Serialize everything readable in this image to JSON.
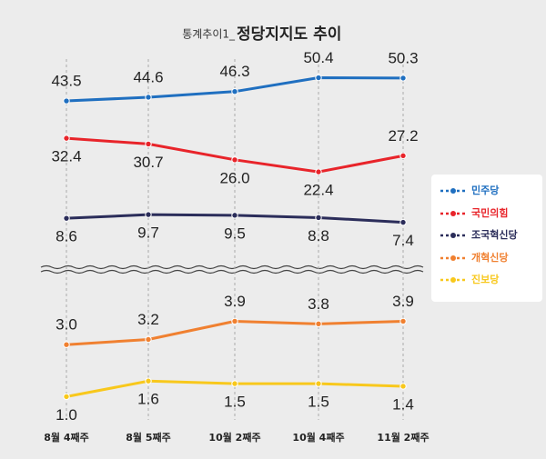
{
  "chart_data": {
    "type": "line",
    "kicker": "통계추이1_",
    "title": "정당지지도 추이",
    "categories": [
      "8월 4째주",
      "8월 5째주",
      "10월 2째주",
      "10월 4째주",
      "11월 2째주"
    ],
    "ylim": [
      0,
      60
    ],
    "y2lim": [
      0,
      5
    ],
    "series": [
      {
        "name": "민주당",
        "color": "#1f6fc0",
        "values": [
          43.5,
          44.6,
          46.3,
          50.4,
          50.3
        ],
        "value_labels": [
          "43.5",
          "44.6",
          "46.3",
          "50.4",
          "50.3"
        ]
      },
      {
        "name": "국민의힘",
        "color": "#e8242a",
        "values": [
          32.4,
          30.7,
          26.0,
          22.4,
          27.2
        ],
        "value_labels": [
          "32.4",
          "30.7",
          "26.0",
          "22.4",
          "27.2"
        ]
      },
      {
        "name": "조국혁신당",
        "color": "#2b2d5a",
        "values": [
          8.6,
          9.7,
          9.5,
          8.8,
          7.4
        ],
        "value_labels": [
          "8.6",
          "9.7",
          "9.5",
          "8.8",
          "7.4"
        ]
      },
      {
        "name": "개혁신당",
        "color": "#f08030",
        "axis": "y2",
        "values": [
          3.0,
          3.2,
          3.9,
          3.8,
          3.9
        ],
        "value_labels": [
          "3.0",
          "3.2",
          "3.9",
          "3.8",
          "3.9"
        ]
      },
      {
        "name": "진보당",
        "color": "#f8c81c",
        "axis": "y2",
        "values": [
          1.0,
          1.6,
          1.5,
          1.5,
          1.4
        ],
        "value_labels": [
          "1.0",
          "1.6",
          "1.5",
          "1.5",
          "1.4"
        ]
      }
    ]
  }
}
